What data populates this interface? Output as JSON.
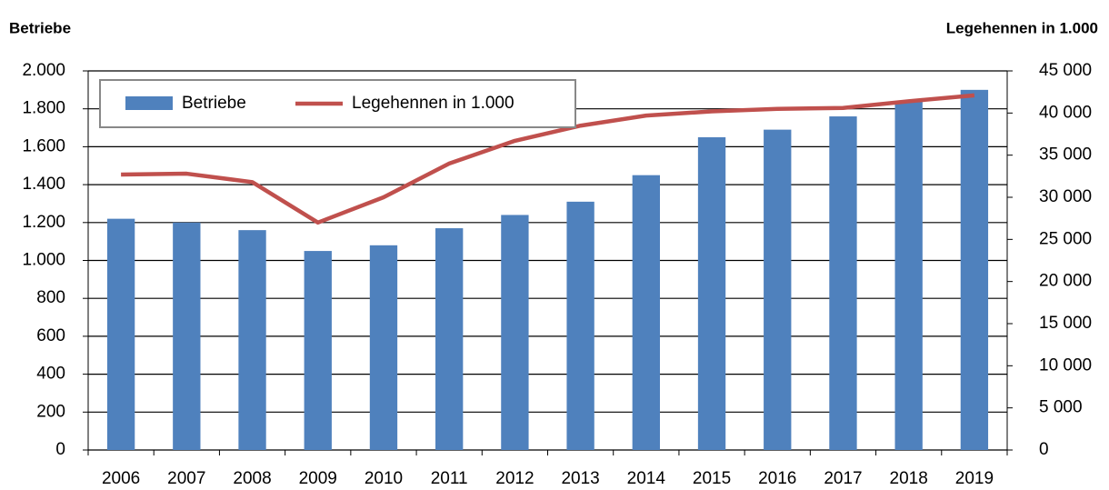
{
  "chart_data": {
    "type": "bar",
    "ylabel": "Betriebe",
    "y2label": "Legehennen in 1.000",
    "categories": [
      "2006",
      "2007",
      "2008",
      "2009",
      "2010",
      "2011",
      "2012",
      "2013",
      "2014",
      "2015",
      "2016",
      "2017",
      "2018",
      "2019"
    ],
    "series": [
      {
        "name": "Betriebe",
        "type": "bar",
        "color": "#4f81bd",
        "values": [
          1220,
          1200,
          1160,
          1050,
          1080,
          1170,
          1240,
          1310,
          1450,
          1650,
          1690,
          1760,
          1840,
          1900
        ]
      },
      {
        "name": "Legehennen in 1.000",
        "type": "line",
        "axis": "y2",
        "color": "#c0504d",
        "values": [
          32700,
          32800,
          31800,
          27000,
          30000,
          34000,
          36700,
          38500,
          39700,
          40200,
          40500,
          40600,
          41400,
          42100
        ]
      }
    ],
    "ylim": [
      0,
      2000
    ],
    "yticks": [
      0,
      200,
      400,
      600,
      800,
      {
        "value": 1000,
        "label": "1.000"
      },
      {
        "value": 1200,
        "label": "1.200"
      },
      {
        "value": 1400,
        "label": "1.400"
      },
      {
        "value": 1600,
        "label": "1.600"
      },
      {
        "value": 1800,
        "label": "1.800"
      },
      {
        "value": 2000,
        "label": "2.000"
      }
    ],
    "y2lim": [
      0,
      45000
    ],
    "y2ticks": [
      0,
      {
        "value": 5000,
        "label": "5 000"
      },
      {
        "value": 10000,
        "label": "10 000"
      },
      {
        "value": 15000,
        "label": "15 000"
      },
      {
        "value": 20000,
        "label": "20 000"
      },
      {
        "value": 25000,
        "label": "25 000"
      },
      {
        "value": 30000,
        "label": "30 000"
      },
      {
        "value": 35000,
        "label": "35 000"
      },
      {
        "value": 40000,
        "label": "40 000"
      },
      {
        "value": 45000,
        "label": "45 000"
      }
    ],
    "grid": true,
    "legend": "top-left"
  }
}
